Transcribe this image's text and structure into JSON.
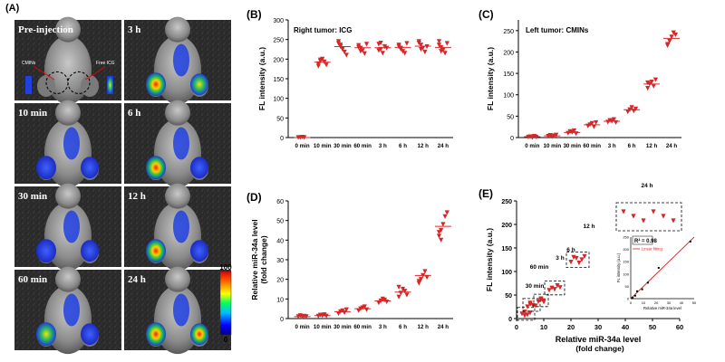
{
  "figure_labels": [
    "(A)",
    "(B)",
    "(C)",
    "(D)",
    "(E)"
  ],
  "panel_a": {
    "tiles": [
      {
        "label": "Pre-injection"
      },
      {
        "label": "3 h"
      },
      {
        "label": "10 min"
      },
      {
        "label": "6 h"
      },
      {
        "label": "30 min"
      },
      {
        "label": "12 h"
      },
      {
        "label": "60 min"
      },
      {
        "label": "24 h"
      }
    ],
    "annotations": {
      "cmins": "CMINs",
      "free_icg": "Free ICG"
    },
    "colorbar": {
      "max_label": "100",
      "min_label": "0"
    }
  },
  "chart_data": [
    {
      "id": "B",
      "type": "scatter",
      "title": "Right tumor: ICG",
      "ylabel": "FL intensity (a.u.)",
      "ylim": [
        0,
        300
      ],
      "yticks": [
        0,
        50,
        100,
        150,
        200,
        250,
        300
      ],
      "categories": [
        "0 min",
        "10 min",
        "30 min",
        "60 min",
        "3 h",
        "6 h",
        "12 h",
        "24 h"
      ],
      "points": [
        [
          0,
          0,
          1,
          0
        ],
        [
          188,
          195,
          200,
          193,
          185,
          182,
          198
        ],
        [
          240,
          232,
          225,
          218,
          210,
          245,
          236
        ],
        [
          235,
          228,
          222,
          214,
          238,
          230,
          220
        ],
        [
          238,
          225,
          215,
          232,
          228,
          222,
          241
        ],
        [
          232,
          225,
          220,
          215,
          240,
          236,
          228
        ],
        [
          241,
          236,
          228,
          218,
          232,
          245,
          225
        ],
        [
          236,
          230,
          223,
          215,
          240,
          245,
          220
        ]
      ],
      "means": [
        0,
        192,
        232,
        229,
        229,
        230,
        233,
        230
      ],
      "color": "#d62728"
    },
    {
      "id": "C",
      "type": "scatter",
      "title": "Left tumor: CMINs",
      "ylabel": "FL intensity (a.u.)",
      "ylim": [
        0,
        275
      ],
      "yticks": [
        0,
        50,
        100,
        150,
        200,
        250
      ],
      "categories": [
        "0 min",
        "10 min",
        "30 min",
        "60 min",
        "3 h",
        "6 h",
        "12 h",
        "24 h"
      ],
      "points": [
        [
          1,
          2,
          0,
          3,
          1
        ],
        [
          3,
          5,
          2,
          4,
          6
        ],
        [
          10,
          14,
          12,
          16,
          9
        ],
        [
          27,
          30,
          33,
          25,
          35
        ],
        [
          36,
          40,
          38,
          42,
          35
        ],
        [
          60,
          65,
          70,
          62,
          67
        ],
        [
          115,
          125,
          130,
          120,
          135,
          128
        ],
        [
          215,
          225,
          235,
          245,
          240,
          218
        ]
      ],
      "means": [
        2,
        4,
        12,
        30,
        38,
        65,
        125,
        232
      ],
      "color": "#d62728"
    },
    {
      "id": "D",
      "type": "scatter",
      "title": "",
      "ylabel": "Relative miR-34a level\n(fold change)",
      "ylim": [
        0,
        60
      ],
      "yticks": [
        0,
        10,
        20,
        30,
        40,
        50,
        60
      ],
      "categories": [
        "0 min",
        "10 min",
        "30 min",
        "60 min",
        "3 h",
        "6 h",
        "12 h",
        "24 h"
      ],
      "points": [
        [
          1,
          1.5,
          0.8,
          1.2,
          1
        ],
        [
          1.2,
          1.8,
          1.5,
          2,
          1.3
        ],
        [
          2.5,
          3.5,
          4,
          3,
          4.5
        ],
        [
          4,
          5,
          5.5,
          6,
          4.5
        ],
        [
          8,
          9,
          10,
          9.5,
          8.5
        ],
        [
          11,
          13,
          15,
          14,
          12,
          16
        ],
        [
          18,
          20,
          22,
          24,
          21,
          19
        ],
        [
          42,
          45,
          48,
          52,
          54,
          44,
          40
        ]
      ],
      "means": [
        1,
        1.5,
        3.5,
        5,
        9,
        13.5,
        22,
        47
      ],
      "color": "#d62728"
    },
    {
      "id": "E",
      "type": "scatter",
      "title": "",
      "xlabel": "Relative miR-34a level\n(fold change)",
      "ylabel": "FL intensity (a.u.)",
      "xlim": [
        0,
        60
      ],
      "ylim": [
        0,
        250
      ],
      "xticks": [
        0,
        10,
        20,
        30,
        40,
        50,
        60
      ],
      "yticks": [
        0,
        50,
        100,
        150,
        200,
        250
      ],
      "groups": [
        {
          "label": "30 min",
          "points": [
            [
              2,
              10
            ],
            [
              3,
              14
            ],
            [
              4,
              8
            ],
            [
              5,
              12
            ],
            [
              3,
              6
            ]
          ]
        },
        {
          "label": "60 min",
          "points": [
            [
              4,
              25
            ],
            [
              5,
              30
            ],
            [
              6,
              28
            ],
            [
              5,
              33
            ],
            [
              7,
              27
            ]
          ]
        },
        {
          "label": "3 h",
          "points": [
            [
              8,
              36
            ],
            [
              9,
              40
            ],
            [
              10,
              38
            ],
            [
              9,
              42
            ],
            [
              10,
              35
            ]
          ]
        },
        {
          "label": "6 h",
          "points": [
            [
              12,
              60
            ],
            [
              13,
              65
            ],
            [
              15,
              70
            ],
            [
              14,
              62
            ],
            [
              16,
              66
            ]
          ]
        },
        {
          "label": "12 h",
          "points": [
            [
              20,
              120
            ],
            [
              22,
              128
            ],
            [
              24,
              125
            ],
            [
              21,
              130
            ],
            [
              23,
              118
            ],
            [
              25,
              132
            ]
          ]
        },
        {
          "label": "24 h",
          "points": [
            [
              40,
              225
            ],
            [
              45,
              230
            ],
            [
              48,
              238
            ],
            [
              52,
              245
            ],
            [
              54,
              222
            ],
            [
              44,
              235
            ]
          ]
        }
      ],
      "inset": {
        "r_squared_label": "R² = 0.98",
        "legend_label": "Linear fitting",
        "ylabel": "FL intensity (a.u.)",
        "xlabel": "Relative miR-34a level",
        "xticks": [
          0,
          10,
          20,
          30,
          40,
          50
        ],
        "yticks": [
          0,
          50,
          100,
          150,
          200,
          250
        ],
        "xlim": [
          0,
          50
        ],
        "ylim": [
          0,
          250
        ],
        "points": [
          [
            1,
            2
          ],
          [
            1.5,
            4
          ],
          [
            3.5,
            12
          ],
          [
            5,
            30
          ],
          [
            9,
            38
          ],
          [
            13.5,
            65
          ],
          [
            22,
            125
          ],
          [
            47,
            232
          ]
        ],
        "fit": [
          [
            0,
            0
          ],
          [
            50,
            250
          ]
        ]
      },
      "color": "#d62728"
    }
  ]
}
